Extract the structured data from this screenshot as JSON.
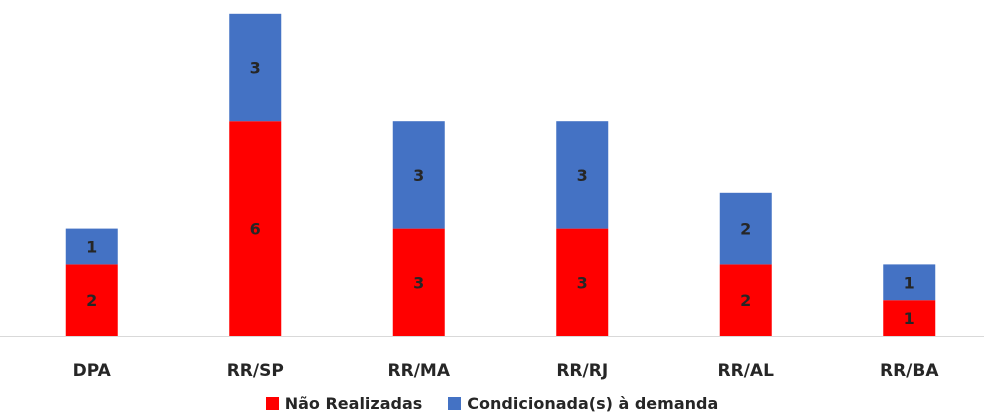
{
  "chart_data": {
    "type": "bar",
    "stacked": true,
    "categories": [
      "DPA",
      "RR/SP",
      "RR/MA",
      "RR/RJ",
      "RR/AL",
      "RR/BA"
    ],
    "series": [
      {
        "name": "Não Realizadas",
        "color": "#ff0000",
        "values": [
          2,
          6,
          3,
          3,
          2,
          1
        ]
      },
      {
        "name": "Condicionada(s) à demanda",
        "color": "#4472c4",
        "values": [
          1,
          3,
          3,
          3,
          2,
          1
        ]
      }
    ],
    "legend_position": "bottom",
    "grid": false
  }
}
